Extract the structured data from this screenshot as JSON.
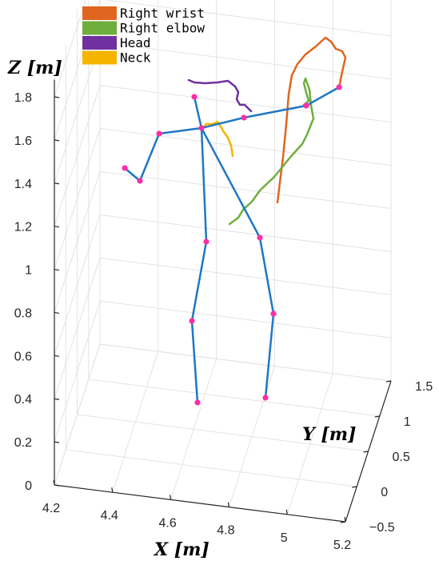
{
  "chart_data": {
    "type": "line3d",
    "axes": {
      "x": {
        "label": "X [m]",
        "range": [
          4.2,
          5.2
        ],
        "ticks": [
          "4.2",
          "4.4",
          "4.6",
          "4.8",
          "5",
          "5.2"
        ]
      },
      "y": {
        "label": "Y [m]",
        "range": [
          -0.5,
          1.5
        ],
        "ticks": [
          "-0.5",
          "0",
          "0.5",
          "1",
          "1.5"
        ]
      },
      "z": {
        "label": "Z [m]",
        "range": [
          0,
          1.8
        ],
        "ticks": [
          "0",
          "0.2",
          "0.4",
          "0.6",
          "0.8",
          "1",
          "1.2",
          "1.4",
          "1.6",
          "1.8"
        ]
      }
    },
    "grid": true,
    "legend": {
      "position": "top-left",
      "entries": [
        {
          "name": "Right wrist",
          "color": "#e0651e"
        },
        {
          "name": "Right elbow",
          "color": "#6fae3c"
        },
        {
          "name": "Head",
          "color": "#7030a0"
        },
        {
          "name": "Neck",
          "color": "#f4b400"
        }
      ]
    },
    "skeleton": {
      "bone_color": "#1f77c4",
      "joint_color": "#ff2ea6"
    }
  }
}
